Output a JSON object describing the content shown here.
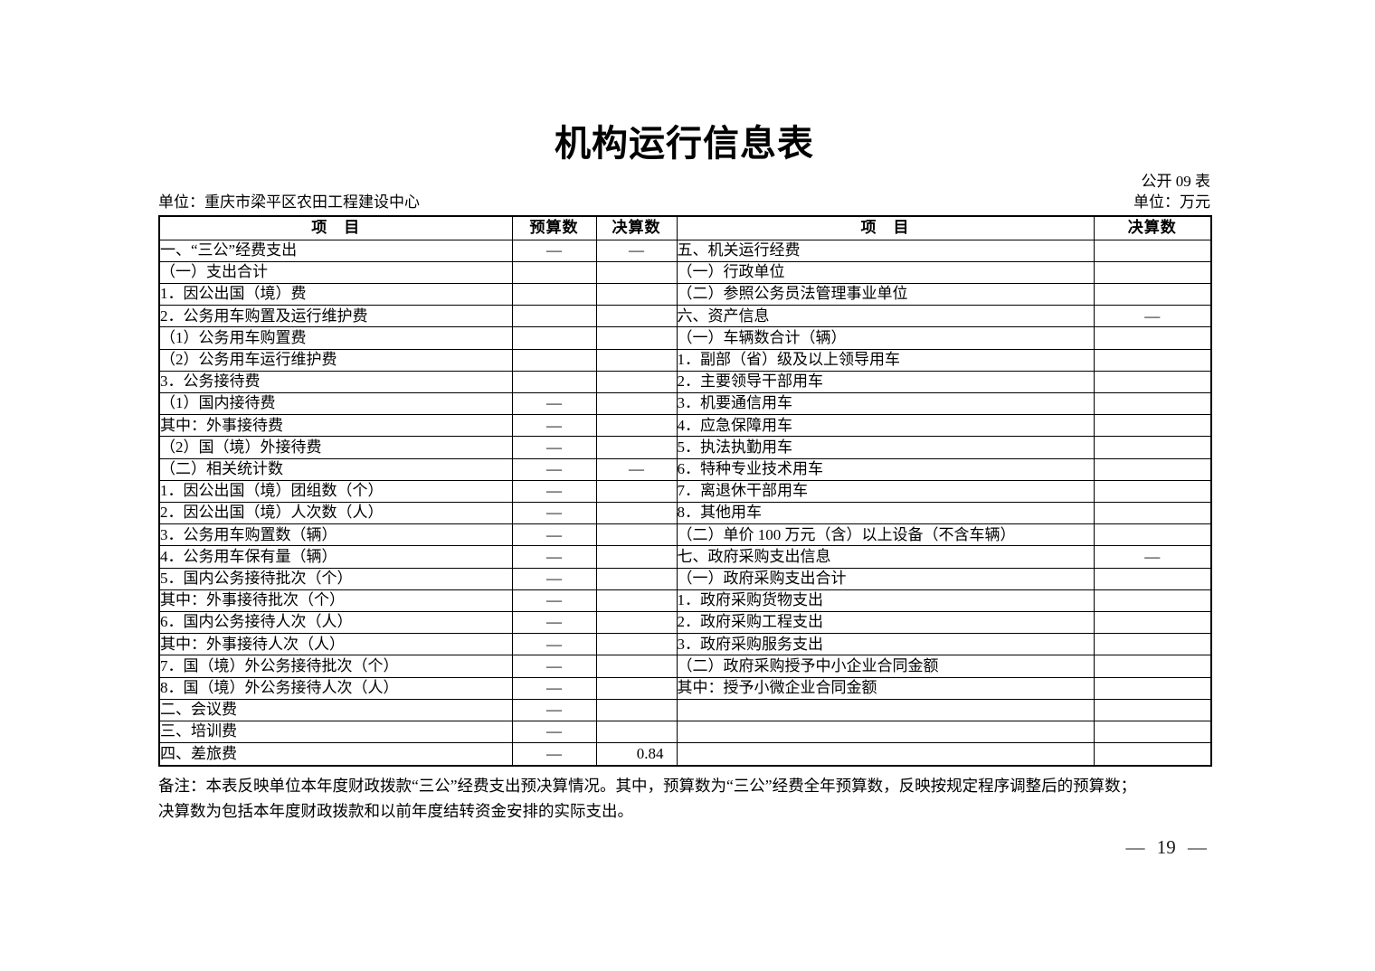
{
  "page": {
    "title": "机构运行信息表",
    "form_label": "公开 09 表",
    "org_unit": "单位：重庆市梁平区农田工程建设中心",
    "currency_unit": "单位：万元",
    "note_line1": "备注：本表反映单位本年度财政拨款“三公”经费支出预决算情况。其中，预算数为“三公”经费全年预算数，反映按规定程序调整后的预算数；",
    "note_line2": "决算数为包括本年度财政拨款和以前年度结转资金安排的实际支出。",
    "page_number": "— 19 —"
  },
  "colors": {
    "text": "#000000",
    "border": "#000000",
    "background": "#ffffff"
  },
  "table": {
    "headers": {
      "item_left": "项　目",
      "budget": "预算数",
      "final_left": "决算数",
      "item_right": "项　目",
      "final_right": "决算数"
    },
    "rows": [
      {
        "left_item": "一、“三公”经费支出",
        "left_indent": 0,
        "budget": "—",
        "final": "—",
        "right_item": "五、机关运行经费",
        "right_indent": 0,
        "right_final": ""
      },
      {
        "left_item": "（一）支出合计",
        "left_indent": 1,
        "budget": "",
        "final": "",
        "right_item": "（一）行政单位",
        "right_indent": 1,
        "right_final": ""
      },
      {
        "left_item": "1．因公出国（境）费",
        "left_indent": 2,
        "budget": "",
        "final": "",
        "right_item": "（二）参照公务员法管理事业单位",
        "right_indent": 1,
        "right_final": ""
      },
      {
        "left_item": "2．公务用车购置及运行维护费",
        "left_indent": 2,
        "budget": "",
        "final": "",
        "right_item": "六、资产信息",
        "right_indent": 0,
        "right_final": "—"
      },
      {
        "left_item": "（1）公务用车购置费",
        "left_indent": 3,
        "budget": "",
        "final": "",
        "right_item": "（一）车辆数合计（辆）",
        "right_indent": 1,
        "right_final": ""
      },
      {
        "left_item": "（2）公务用车运行维护费",
        "left_indent": 3,
        "budget": "",
        "final": "",
        "right_item": "1．副部（省）级及以上领导用车",
        "right_indent": 2,
        "right_final": ""
      },
      {
        "left_item": "3．公务接待费",
        "left_indent": 2,
        "budget": "",
        "final": "",
        "right_item": "2．主要领导干部用车",
        "right_indent": 2,
        "right_final": ""
      },
      {
        "left_item": "（1）国内接待费",
        "left_indent": 3,
        "budget": "—",
        "final": "",
        "right_item": "3．机要通信用车",
        "right_indent": 2,
        "right_final": ""
      },
      {
        "left_item": "其中：外事接待费",
        "left_indent": 5,
        "budget": "—",
        "final": "",
        "right_item": "4．应急保障用车",
        "right_indent": 2,
        "right_final": ""
      },
      {
        "left_item": "（2）国（境）外接待费",
        "left_indent": 3,
        "budget": "—",
        "final": "",
        "right_item": "5．执法执勤用车",
        "right_indent": 2,
        "right_final": ""
      },
      {
        "left_item": "（二）相关统计数",
        "left_indent": 1,
        "budget": "—",
        "final": "—",
        "right_item": "6．特种专业技术用车",
        "right_indent": 2,
        "right_final": ""
      },
      {
        "left_item": "1．因公出国（境）团组数（个）",
        "left_indent": 2,
        "budget": "—",
        "final": "",
        "right_item": "7．离退休干部用车",
        "right_indent": 2,
        "right_final": ""
      },
      {
        "left_item": "2．因公出国（境）人次数（人）",
        "left_indent": 2,
        "budget": "—",
        "final": "",
        "right_item": "8．其他用车",
        "right_indent": 2,
        "right_final": ""
      },
      {
        "left_item": "3．公务用车购置数（辆）",
        "left_indent": 2,
        "budget": "—",
        "final": "",
        "right_item": "（二）单价 100 万元（含）以上设备（不含车辆）",
        "right_indent": 1,
        "right_final": ""
      },
      {
        "left_item": "4．公务用车保有量（辆）",
        "left_indent": 2,
        "budget": "—",
        "final": "",
        "right_item": "七、政府采购支出信息",
        "right_indent": 0,
        "right_final": "—"
      },
      {
        "left_item": "5．国内公务接待批次（个）",
        "left_indent": 2,
        "budget": "—",
        "final": "",
        "right_item": "（一）政府采购支出合计",
        "right_indent": 1,
        "right_final": ""
      },
      {
        "left_item": "其中：外事接待批次（个）",
        "left_indent": 4,
        "budget": "—",
        "final": "",
        "right_item": "1．政府采购货物支出",
        "right_indent": 2,
        "right_final": ""
      },
      {
        "left_item": "6．国内公务接待人次（人）",
        "left_indent": 2,
        "budget": "—",
        "final": "",
        "right_item": "2．政府采购工程支出",
        "right_indent": 2,
        "right_final": ""
      },
      {
        "left_item": "其中：外事接待人次（人）",
        "left_indent": 4,
        "budget": "—",
        "final": "",
        "right_item": "3．政府采购服务支出",
        "right_indent": 2,
        "right_final": ""
      },
      {
        "left_item": "7．国（境）外公务接待批次（个）",
        "left_indent": 2,
        "budget": "—",
        "final": "",
        "right_item": "（二）政府采购授予中小企业合同金额",
        "right_indent": 1,
        "right_final": ""
      },
      {
        "left_item": "8．国（境）外公务接待人次（人）",
        "left_indent": 2,
        "budget": "—",
        "final": "",
        "right_item": "其中：授予小微企业合同金额",
        "right_indent": 4,
        "right_final": ""
      },
      {
        "left_item": "二、会议费",
        "left_indent": 0,
        "budget": "—",
        "final": "",
        "right_item": "",
        "right_indent": 0,
        "right_final": ""
      },
      {
        "left_item": "三、培训费",
        "left_indent": 0,
        "budget": "—",
        "final": "",
        "right_item": "",
        "right_indent": 0,
        "right_final": ""
      },
      {
        "left_item": "四、差旅费",
        "left_indent": 0,
        "budget": "—",
        "final": "0.84",
        "right_item": "",
        "right_indent": 0,
        "right_final": ""
      }
    ]
  }
}
